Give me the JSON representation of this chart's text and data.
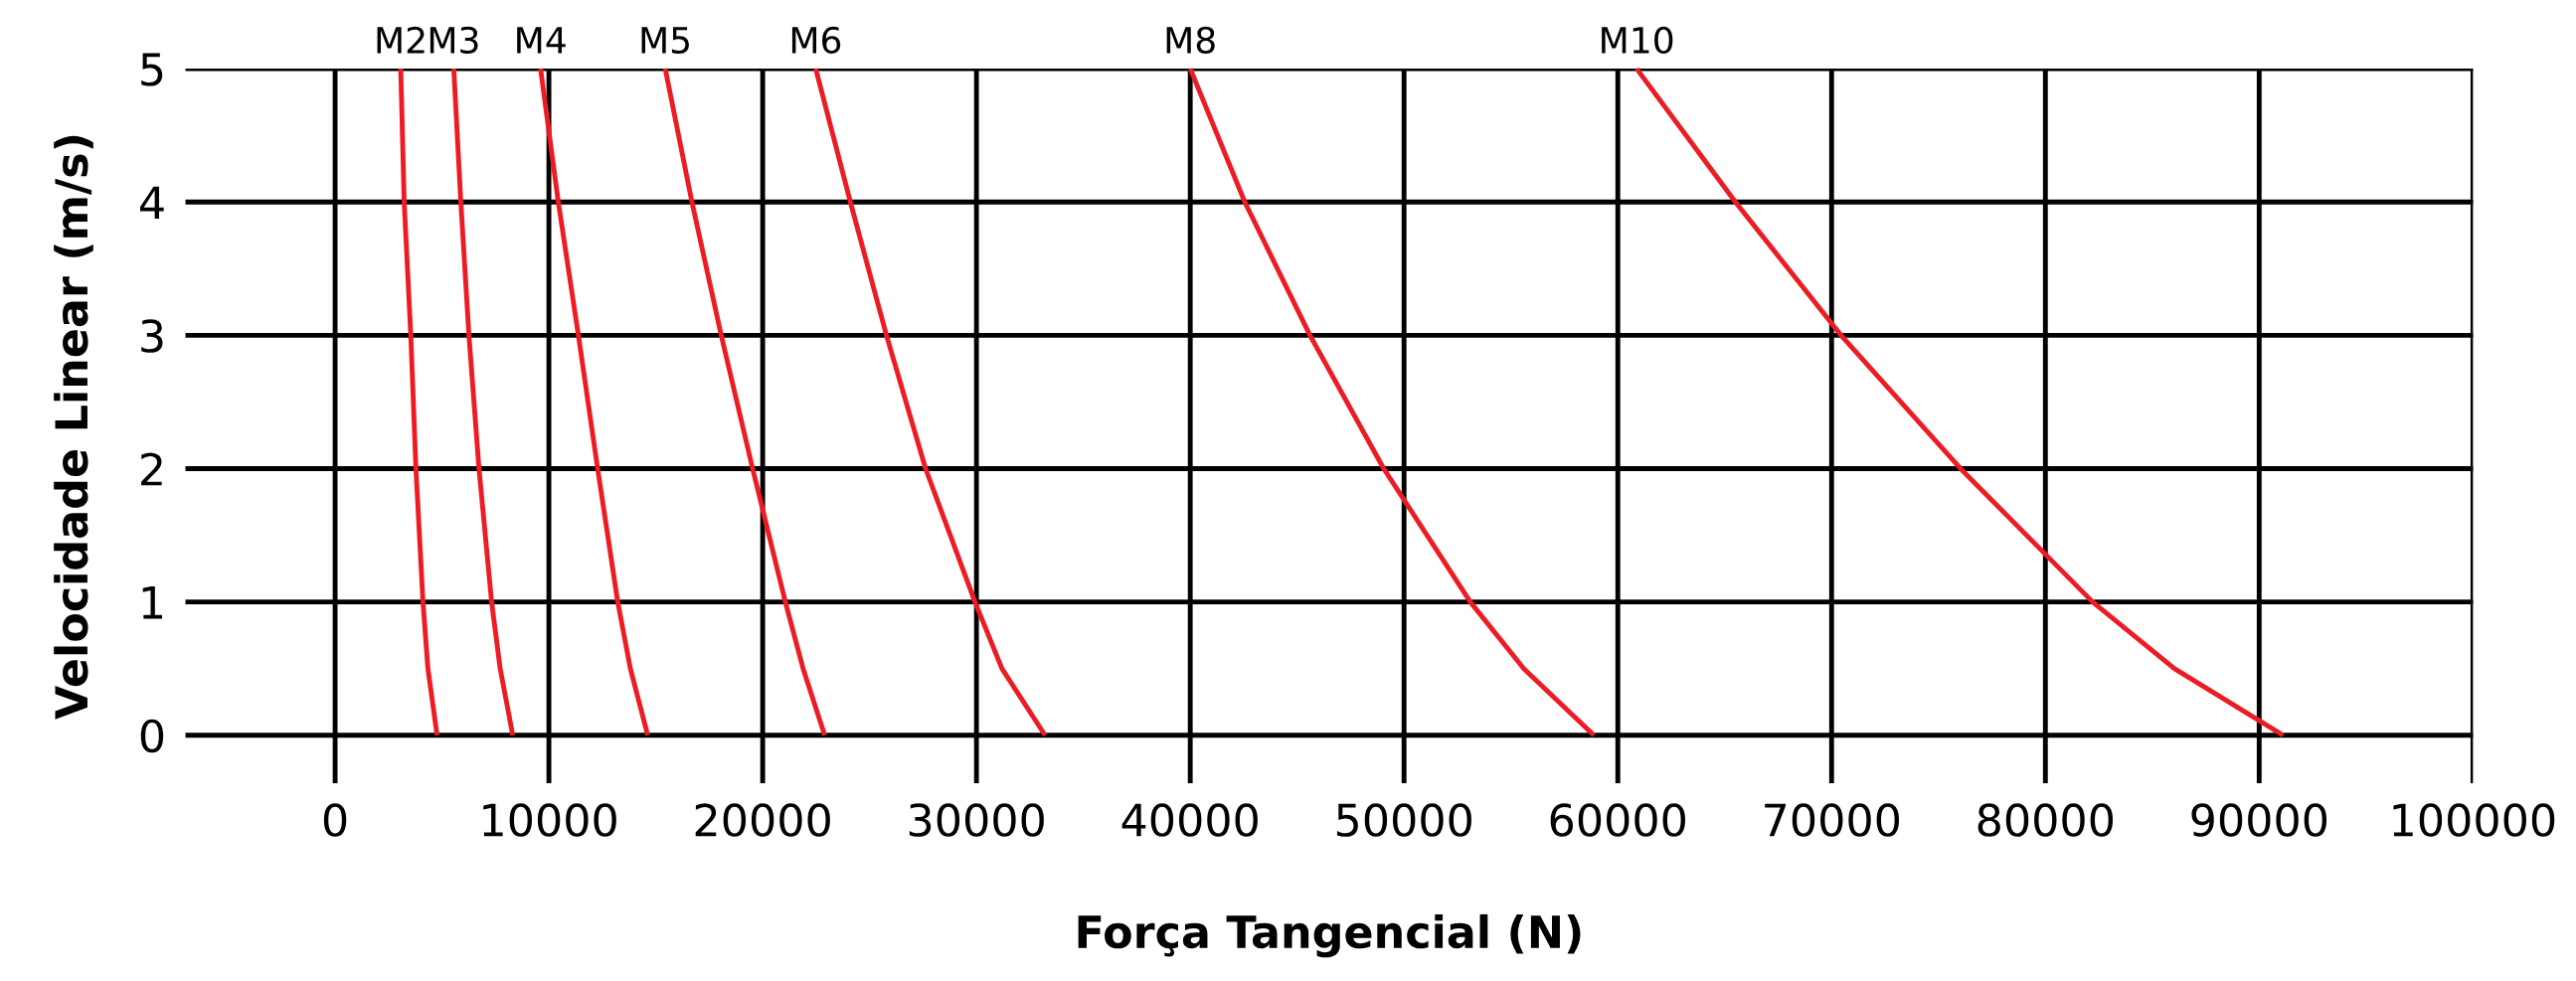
{
  "chart_data": {
    "type": "line",
    "xlabel": "Força Tangencial (N)",
    "ylabel": "Velocidade Linear (m/s)",
    "xlim": [
      -7000,
      100000
    ],
    "ylim": [
      -0.36,
      5
    ],
    "xticks": [
      0,
      10000,
      20000,
      30000,
      40000,
      50000,
      60000,
      70000,
      80000,
      90000,
      100000
    ],
    "yticks": [
      0,
      1,
      2,
      3,
      4,
      5
    ],
    "grid": true,
    "marker": "none",
    "line_style": "solid",
    "legend": false,
    "series": [
      {
        "name": "M2",
        "color": "#ed1c24",
        "x": [
          3070,
          3230,
          3540,
          3780,
          4110,
          4340,
          4770
        ],
        "values": [
          5,
          4,
          3,
          2,
          1,
          0.5,
          0
        ]
      },
      {
        "name": "M3",
        "color": "#ed1c24",
        "x": [
          5550,
          5880,
          6260,
          6730,
          7320,
          7720,
          8310
        ],
        "values": [
          5,
          4,
          3,
          2,
          1,
          0.5,
          0
        ]
      },
      {
        "name": "M4",
        "color": "#ed1c24",
        "x": [
          9610,
          10440,
          11380,
          12280,
          13220,
          13810,
          14620
        ],
        "values": [
          5,
          4,
          3,
          2,
          1,
          0.5,
          0
        ]
      },
      {
        "name": "M5",
        "color": "#ed1c24",
        "x": [
          15440,
          16690,
          18060,
          19530,
          21060,
          21890,
          22900
        ],
        "values": [
          5,
          4,
          3,
          2,
          1,
          0.5,
          0
        ]
      },
      {
        "name": "M6",
        "color": "#ed1c24",
        "x": [
          22480,
          24100,
          25790,
          27620,
          29930,
          31190,
          33210
        ],
        "values": [
          5,
          4,
          3,
          2,
          1,
          0.5,
          0
        ]
      },
      {
        "name": "M8",
        "color": "#ed1c24",
        "x": [
          40000,
          42550,
          45600,
          49050,
          53100,
          55600,
          58880
        ],
        "values": [
          5,
          4,
          3,
          2,
          1,
          0.5,
          0
        ]
      },
      {
        "name": "M10",
        "color": "#ed1c24",
        "x": [
          60880,
          65500,
          70440,
          76030,
          82210,
          86030,
          91120
        ],
        "values": [
          5,
          4,
          3,
          2,
          1,
          0.5,
          0
        ]
      }
    ]
  }
}
